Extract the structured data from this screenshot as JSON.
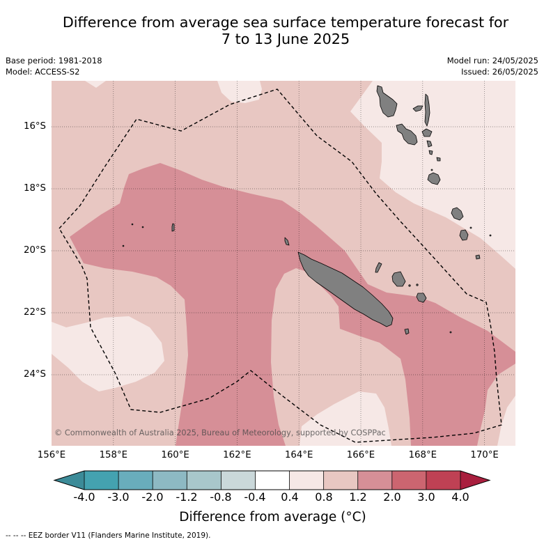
{
  "title": {
    "line1": "Difference from average sea surface temperature forecast for",
    "line2": "7 to 13 June 2025"
  },
  "info": {
    "base_period": "Base period: 1981-2018",
    "model": "Model: ACCESS-S2",
    "model_run": "Model run: 24/05/2025",
    "issued": "Issued: 26/05/2025"
  },
  "map": {
    "lat_labels": [
      "16°S",
      "18°S",
      "20°S",
      "22°S",
      "24°S"
    ],
    "lon_labels": [
      "156°E",
      "158°E",
      "160°E",
      "162°E",
      "164°E",
      "166°E",
      "168°E",
      "170°E"
    ],
    "copyright": "© Commonwealth of Australia 2025, Bureau of Meteorology, supported by COSPPac",
    "colors": {
      "land": "#808080",
      "eez_border": "#000000"
    }
  },
  "colorbar": {
    "ticks": [
      "-4.0",
      "-3.0",
      "-2.0",
      "-1.2",
      "-0.8",
      "-0.4",
      "0.4",
      "0.8",
      "1.2",
      "2.0",
      "3.0",
      "4.0"
    ],
    "colors": [
      "#3c8b98",
      "#44a2b0",
      "#69adbc",
      "#8db9c3",
      "#a8c7cb",
      "#cad8da",
      "#ffffff",
      "#f6e8e6",
      "#e8c7c2",
      "#d68f97",
      "#cc6570",
      "#bf4154",
      "#a91f3e"
    ],
    "label": "Difference from average (°C)"
  },
  "legend": {
    "eez_border": "-- -- -- EEZ border V11 (Flanders Marine Institute, 2019)."
  }
}
